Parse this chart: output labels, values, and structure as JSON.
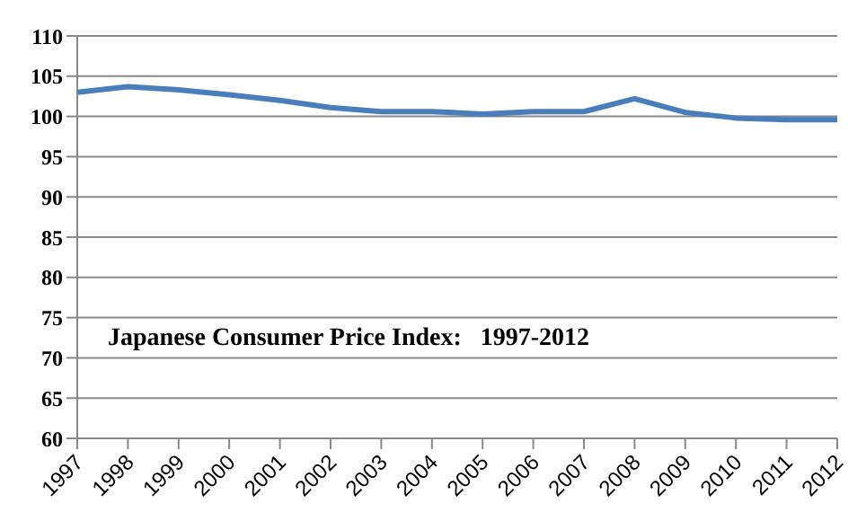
{
  "chart_data": {
    "type": "line",
    "title": "Japanese Consumer Price Index:   1997-2012",
    "categories": [
      "1997",
      "1998",
      "1999",
      "2000",
      "2001",
      "2002",
      "2003",
      "2004",
      "2005",
      "2006",
      "2007",
      "2008",
      "2009",
      "2010",
      "2011",
      "2012"
    ],
    "series": [
      {
        "color": "#4a7ebb",
        "values": [
          103.0,
          103.7,
          103.3,
          102.7,
          102.0,
          101.1,
          100.6,
          100.6,
          100.3,
          100.6,
          100.6,
          102.2,
          100.5,
          99.8,
          99.6,
          99.6
        ]
      }
    ],
    "ylim": [
      60,
      110
    ],
    "yticks": [
      60,
      65,
      70,
      75,
      80,
      85,
      90,
      95,
      100,
      105,
      110
    ],
    "grid": "y",
    "legend": false,
    "marker": "none",
    "line_style": "solid"
  }
}
